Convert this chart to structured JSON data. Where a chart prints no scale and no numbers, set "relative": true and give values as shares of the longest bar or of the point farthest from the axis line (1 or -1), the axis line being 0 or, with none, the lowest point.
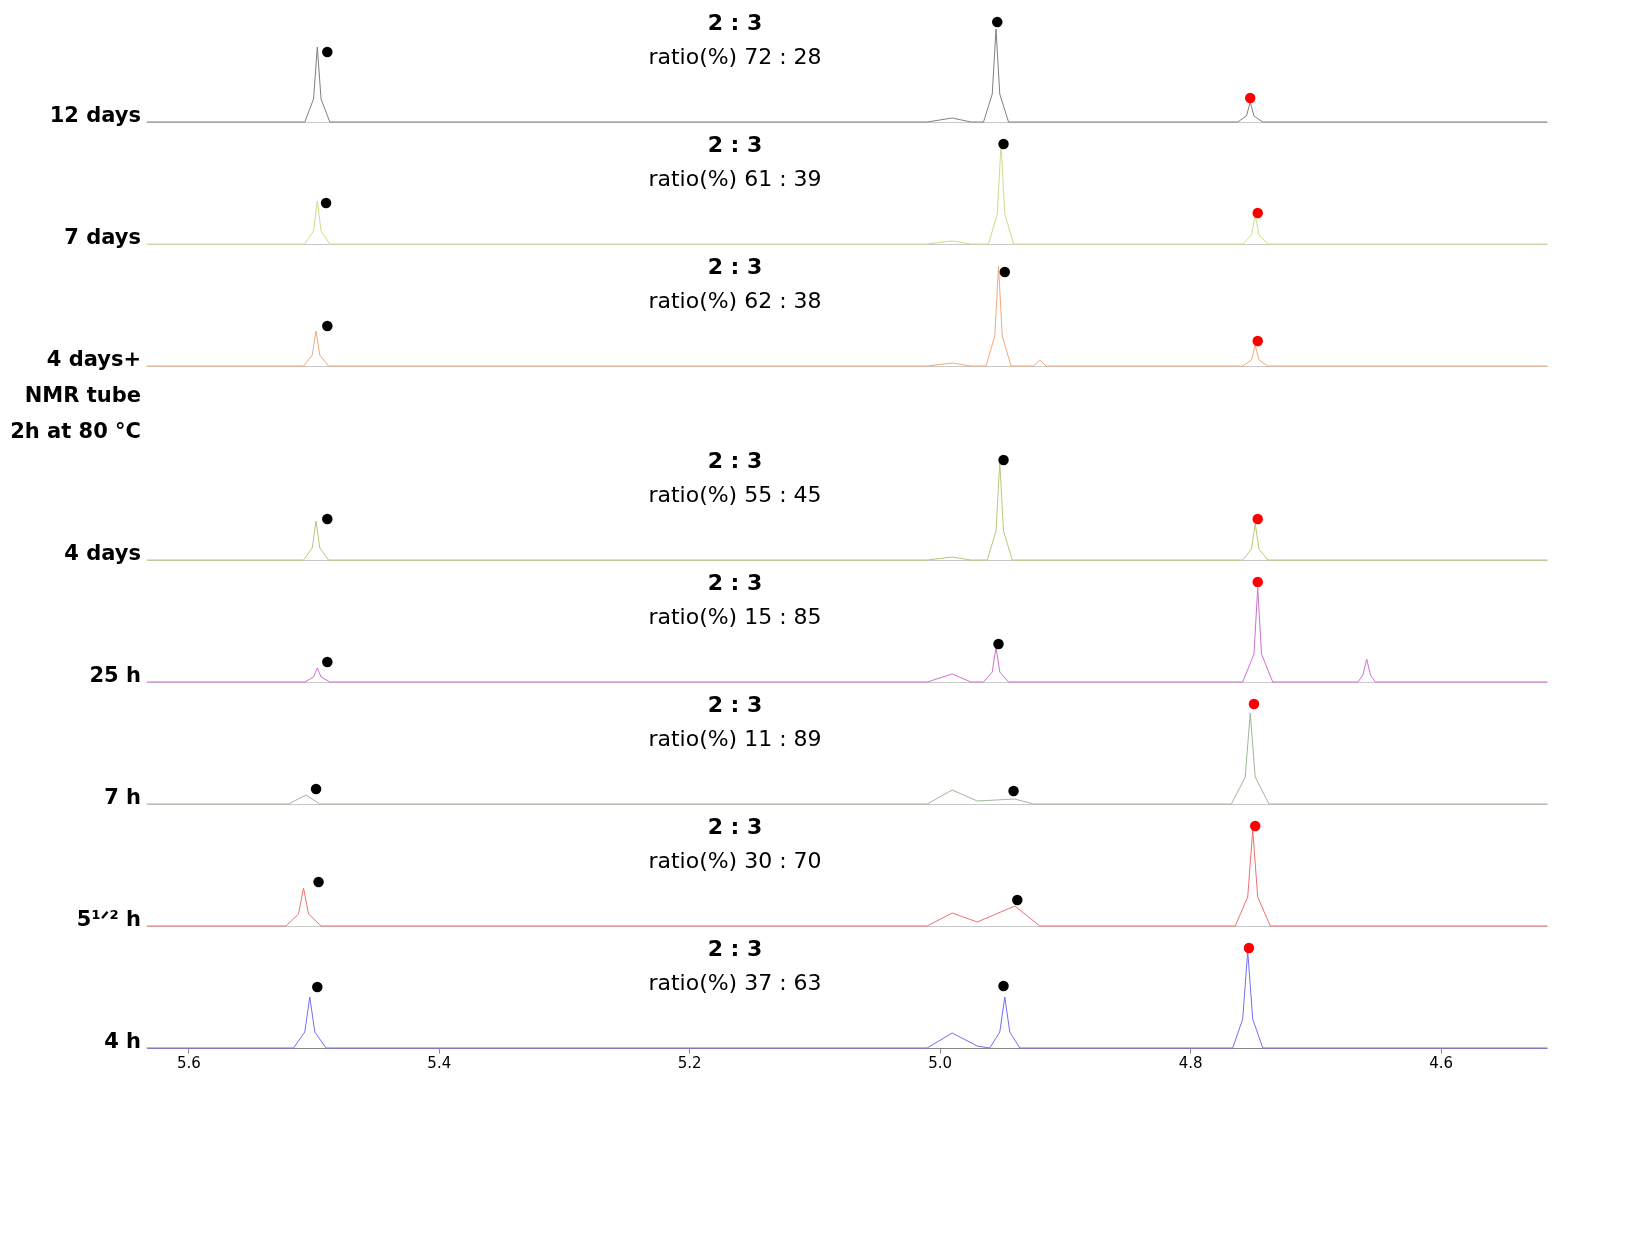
{
  "chart_data": [
    {
      "type": "line",
      "relative": true,
      "ylabel": "12 days",
      "xlim": [
        5.633,
        4.515
      ],
      "tick_labels": false,
      "grid": false,
      "annotations": [
        "2 : 3",
        "ratio(%) 72 : 28"
      ],
      "series": [
        {
          "type": "line",
          "color": "#808080",
          "x": [
            5.633,
            5.507,
            5.5,
            5.497,
            5.494,
            5.487,
            5.01,
            4.99,
            4.975,
            4.965,
            4.958,
            4.955,
            4.952,
            4.945,
            4.762,
            4.755,
            4.752,
            4.749,
            4.742,
            4.515
          ],
          "values": [
            0,
            0,
            0.23,
            0.75,
            0.23,
            0,
            0,
            0.04,
            0,
            0,
            0.28,
            0.93,
            0.28,
            0,
            0,
            0.06,
            0.2,
            0.06,
            0,
            0
          ]
        },
        {
          "type": "scatter",
          "color": "#000000",
          "x": [
            5.489,
            4.954
          ],
          "values": [
            0.7,
            1
          ]
        },
        {
          "type": "scatter",
          "color": "#ff0000",
          "x": [
            4.752
          ],
          "values": [
            0.24
          ]
        }
      ]
    },
    {
      "type": "line",
      "relative": true,
      "ylabel": "7 days",
      "xlim": [
        5.633,
        4.515
      ],
      "tick_labels": false,
      "grid": false,
      "annotations": [
        "2 : 3",
        "ratio(%) 61 : 39"
      ],
      "series": [
        {
          "type": "line",
          "color": "#c8e08a",
          "x": [
            5.633,
            5.507,
            5.5,
            5.497,
            5.494,
            5.487,
            5.01,
            4.99,
            4.975,
            4.961,
            4.954,
            4.951,
            4.948,
            4.941,
            4.758,
            4.751,
            4.748,
            4.745,
            4.738,
            4.515
          ],
          "values": [
            0,
            0,
            0.13,
            0.43,
            0.13,
            0,
            0,
            0.03,
            0,
            0,
            0.3,
            1,
            0.3,
            0,
            0,
            0.09,
            0.29,
            0.09,
            0,
            0
          ]
        },
        {
          "type": "scatter",
          "color": "#000000",
          "x": [
            5.49,
            4.949
          ],
          "values": [
            0.41,
            1.0
          ]
        },
        {
          "type": "scatter",
          "color": "#ff0000",
          "x": [
            4.746
          ],
          "values": [
            0.31
          ]
        }
      ]
    },
    {
      "type": "line",
      "relative": true,
      "ylabel": "4 days+\nNMR tube\n2h at 80 °C",
      "xlim": [
        5.633,
        4.515
      ],
      "tick_labels": false,
      "grid": false,
      "annotations": [
        "2 : 3",
        "ratio(%) 62 : 38"
      ],
      "series": [
        {
          "type": "line",
          "color": "#f4a97a",
          "x": [
            5.633,
            5.508,
            5.501,
            5.498,
            5.495,
            5.488,
            5.01,
            4.99,
            4.975,
            4.963,
            4.956,
            4.953,
            4.95,
            4.943,
            4.925,
            4.92,
            4.915,
            4.758,
            4.751,
            4.748,
            4.745,
            4.738,
            4.515
          ],
          "values": [
            0,
            0,
            0.11,
            0.35,
            0.11,
            0,
            0,
            0.03,
            0,
            0,
            0.3,
            1,
            0.3,
            0,
            0,
            0.06,
            0,
            0,
            0.06,
            0.21,
            0.06,
            0,
            0
          ]
        },
        {
          "type": "scatter",
          "color": "#000000",
          "x": [
            5.489,
            4.948
          ],
          "values": [
            0.4,
            0.94
          ]
        },
        {
          "type": "scatter",
          "color": "#ff0000",
          "x": [
            4.746
          ],
          "values": [
            0.25
          ]
        }
      ]
    },
    {
      "type": "line",
      "relative": true,
      "ylabel": "4 days",
      "xlim": [
        5.633,
        4.515
      ],
      "tick_labels": false,
      "grid": false,
      "annotations": [
        "2 : 3",
        "ratio(%) 55 : 45"
      ],
      "series": [
        {
          "type": "line",
          "color": "#b8c878",
          "x": [
            5.633,
            5.508,
            5.501,
            5.498,
            5.495,
            5.488,
            5.01,
            4.99,
            4.975,
            4.962,
            4.955,
            4.952,
            4.949,
            4.942,
            4.758,
            4.751,
            4.748,
            4.745,
            4.738,
            4.515
          ],
          "values": [
            0,
            0,
            0.12,
            0.39,
            0.12,
            0,
            0,
            0.03,
            0,
            0,
            0.29,
            0.98,
            0.29,
            0,
            0,
            0.11,
            0.36,
            0.11,
            0,
            0
          ]
        },
        {
          "type": "scatter",
          "color": "#000000",
          "x": [
            5.489,
            4.949
          ],
          "values": [
            0.41,
            1
          ]
        },
        {
          "type": "scatter",
          "color": "#ff0000",
          "x": [
            4.746
          ],
          "values": [
            0.41
          ]
        }
      ]
    },
    {
      "type": "line",
      "relative": true,
      "ylabel": "25 h",
      "xlim": [
        5.633,
        4.515
      ],
      "tick_labels": false,
      "grid": false,
      "annotations": [
        "2 : 3",
        "ratio(%) 15 : 85"
      ],
      "series": [
        {
          "type": "line",
          "color": "#d070d0",
          "x": [
            5.633,
            5.507,
            5.5,
            5.497,
            5.494,
            5.487,
            5.01,
            4.99,
            4.975,
            4.965,
            4.958,
            4.955,
            4.952,
            4.945,
            4.758,
            4.749,
            4.746,
            4.743,
            4.734,
            4.666,
            4.662,
            4.659,
            4.656,
            4.652,
            4.515
          ],
          "values": [
            0,
            0,
            0.05,
            0.14,
            0.05,
            0,
            0,
            0.08,
            0,
            0,
            0.1,
            0.35,
            0.1,
            0,
            0,
            0.28,
            0.94,
            0.28,
            0,
            0,
            0.07,
            0.23,
            0.07,
            0,
            0
          ]
        },
        {
          "type": "scatter",
          "color": "#000000",
          "x": [
            5.489,
            4.953
          ],
          "values": [
            0.2,
            0.38
          ]
        },
        {
          "type": "scatter",
          "color": "#ff0000",
          "x": [
            4.746
          ],
          "values": [
            1
          ]
        }
      ]
    },
    {
      "type": "line",
      "relative": true,
      "ylabel": "7 h",
      "xlim": [
        5.633,
        4.515
      ],
      "tick_labels": false,
      "grid": false,
      "annotations": [
        "2 : 3",
        "ratio(%) 11 : 89"
      ],
      "series": [
        {
          "type": "line",
          "color": "#a0b898",
          "x": [
            5.633,
            5.52,
            5.506,
            5.495,
            5.01,
            4.99,
            4.97,
            4.94,
            4.925,
            4.767,
            4.756,
            4.752,
            4.748,
            4.737,
            4.515
          ],
          "values": [
            0,
            0,
            0.09,
            0,
            0,
            0.14,
            0.03,
            0.05,
            0,
            0,
            0.27,
            0.91,
            0.27,
            0,
            0
          ]
        },
        {
          "type": "scatter",
          "color": "#000000",
          "x": [
            5.498,
            4.941
          ],
          "values": [
            0.15,
            0.13
          ]
        },
        {
          "type": "scatter",
          "color": "#ff0000",
          "x": [
            4.749
          ],
          "values": [
            1
          ]
        }
      ]
    },
    {
      "type": "line",
      "relative": true,
      "ylabel": "5¹ᐟ² h",
      "xlim": [
        5.633,
        4.515
      ],
      "tick_labels": false,
      "grid": false,
      "annotations": [
        "2 : 3",
        "ratio(%) 30 : 70"
      ],
      "series": [
        {
          "type": "line",
          "color": "#f07070",
          "x": [
            5.633,
            5.522,
            5.512,
            5.508,
            5.504,
            5.494,
            5.01,
            4.99,
            4.97,
            4.94,
            4.92,
            4.764,
            4.754,
            4.75,
            4.746,
            4.736,
            4.515
          ],
          "values": [
            0,
            0,
            0.12,
            0.38,
            0.12,
            0,
            0,
            0.13,
            0.04,
            0.2,
            0,
            0,
            0.29,
            0.96,
            0.29,
            0,
            0
          ]
        },
        {
          "type": "scatter",
          "color": "#000000",
          "x": [
            5.496,
            4.938
          ],
          "values": [
            0.44,
            0.26
          ]
        },
        {
          "type": "scatter",
          "color": "#ff0000",
          "x": [
            4.748
          ],
          "values": [
            1
          ]
        }
      ]
    },
    {
      "type": "line",
      "relative": true,
      "ylabel": "4 h",
      "xlim": [
        5.633,
        4.515
      ],
      "xticks": [
        5.6,
        5.4,
        5.2,
        {
          "value": 5.0,
          "label": "5.0"
        },
        4.8,
        4.6
      ],
      "tick_labels": "x",
      "grid": false,
      "annotations": [
        "2 : 3",
        "ratio(%) 37 : 63"
      ],
      "series": [
        {
          "type": "line",
          "color": "#7070f0",
          "x": [
            5.633,
            5.516,
            5.507,
            5.503,
            5.499,
            5.49,
            5.01,
            4.99,
            4.97,
            4.96,
            4.952,
            4.948,
            4.944,
            4.936,
            4.766,
            4.758,
            4.754,
            4.75,
            4.742,
            4.515
          ],
          "values": [
            0,
            0,
            0.16,
            0.51,
            0.16,
            0,
            0,
            0.15,
            0.02,
            0,
            0.16,
            0.51,
            0.16,
            0,
            0,
            0.29,
            0.97,
            0.29,
            0,
            0
          ]
        },
        {
          "type": "scatter",
          "color": "#000000",
          "x": [
            5.497,
            4.949
          ],
          "values": [
            0.61,
            0.62
          ]
        },
        {
          "type": "scatter",
          "color": "#ff0000",
          "x": [
            4.753
          ],
          "values": [
            1
          ]
        }
      ]
    }
  ]
}
